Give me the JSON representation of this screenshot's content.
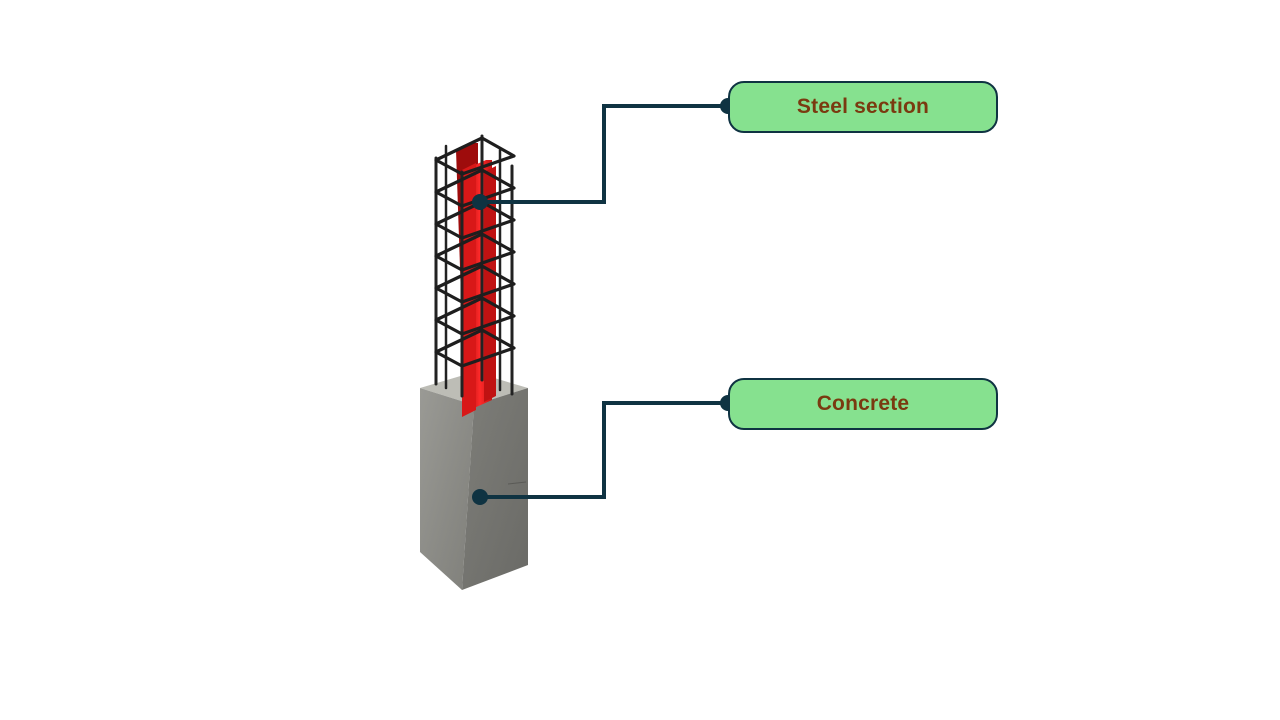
{
  "labels": {
    "steel_section": "Steel section",
    "concrete": "Concrete"
  },
  "colors": {
    "label_fill": "#86e18f",
    "label_border": "#0f3342",
    "label_text": "#7a3a10",
    "leader_line": "#0f3342",
    "steel_section": "#e01b1b",
    "rebar": "#222222",
    "concrete": "#8a8a86",
    "background": "#ffffff"
  }
}
